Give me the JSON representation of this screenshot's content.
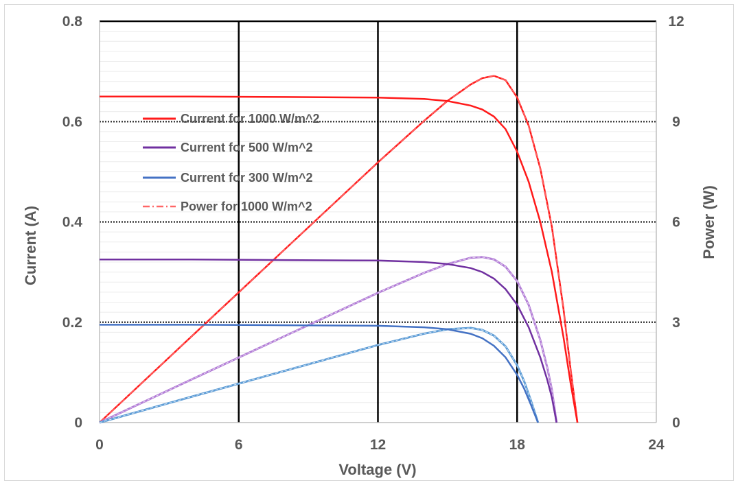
{
  "chart_data": {
    "type": "line",
    "xlabel": "Voltage (V)",
    "ylabel": "Current (A)",
    "y2label": "Power (W)",
    "xlim": [
      0,
      24
    ],
    "ylim": [
      0,
      0.8
    ],
    "y2lim": [
      0,
      12
    ],
    "xticks": [
      "0",
      "6",
      "12",
      "18",
      "24"
    ],
    "yticks": [
      "0",
      "0.2",
      "0.4",
      "0.6",
      "0.8"
    ],
    "y2ticks": [
      "0",
      "3",
      "6",
      "9",
      "12"
    ],
    "legend_position": "upper-left inside plot",
    "colors": {
      "current_1000": "#ff1a1a",
      "current_500": "#7030a0",
      "current_300": "#4472c4",
      "power_1000_legend": "#ff6666",
      "power_500": "#b27cd6",
      "power_300": "#5b9bd5",
      "vertical_grid": "#000000",
      "horizontal_grid": "#404040",
      "text": "#595959"
    },
    "series": [
      {
        "name": "Current for 1000 W/m^2",
        "axis": "left",
        "style": "solid",
        "x": [
          0,
          4,
          8,
          12,
          14,
          15,
          16,
          16.5,
          17,
          17.5,
          18,
          18.5,
          19,
          19.5,
          20,
          20.3,
          20.6
        ],
        "y": [
          0.65,
          0.65,
          0.649,
          0.648,
          0.645,
          0.641,
          0.632,
          0.624,
          0.61,
          0.585,
          0.54,
          0.48,
          0.4,
          0.3,
          0.17,
          0.08,
          0
        ]
      },
      {
        "name": "Current for 500 W/m^2",
        "axis": "left",
        "style": "solid",
        "x": [
          0,
          4,
          8,
          12,
          14,
          15,
          16,
          16.5,
          17,
          17.5,
          18,
          18.5,
          19,
          19.3,
          19.5,
          19.7
        ],
        "y": [
          0.325,
          0.325,
          0.324,
          0.323,
          0.32,
          0.316,
          0.308,
          0.3,
          0.287,
          0.266,
          0.235,
          0.19,
          0.13,
          0.085,
          0.05,
          0
        ]
      },
      {
        "name": "Current for 300 W/m^2",
        "axis": "left",
        "style": "solid",
        "x": [
          0,
          4,
          8,
          12,
          14,
          15,
          16,
          16.5,
          17,
          17.5,
          18,
          18.3,
          18.6,
          18.9
        ],
        "y": [
          0.195,
          0.195,
          0.194,
          0.193,
          0.19,
          0.186,
          0.177,
          0.168,
          0.153,
          0.13,
          0.095,
          0.068,
          0.035,
          0
        ]
      },
      {
        "name": "Power for 1000 W/m^2",
        "axis": "right",
        "style": "dashdot",
        "x": [
          0,
          4,
          8,
          12,
          14,
          15,
          16,
          16.5,
          17,
          17.5,
          18,
          18.5,
          19,
          19.5,
          20,
          20.3,
          20.6
        ],
        "y": [
          0,
          2.6,
          5.19,
          7.78,
          9.03,
          9.62,
          10.11,
          10.3,
          10.37,
          10.24,
          9.72,
          8.88,
          7.6,
          5.85,
          3.4,
          1.62,
          0
        ]
      },
      {
        "axis": "right",
        "style": "solid+dashed",
        "x": [
          0,
          4,
          8,
          12,
          14,
          15,
          16,
          16.5,
          17,
          17.5,
          18,
          18.5,
          19,
          19.3,
          19.5,
          19.7
        ],
        "y": [
          0,
          1.3,
          2.59,
          3.88,
          4.48,
          4.74,
          4.93,
          4.95,
          4.88,
          4.66,
          4.23,
          3.52,
          2.47,
          1.64,
          0.98,
          0
        ]
      },
      {
        "axis": "right",
        "style": "solid+dashed",
        "x": [
          0,
          4,
          8,
          12,
          14,
          15,
          16,
          16.5,
          17,
          17.5,
          18,
          18.3,
          18.6,
          18.9
        ],
        "y": [
          0,
          0.78,
          1.55,
          2.32,
          2.66,
          2.79,
          2.83,
          2.77,
          2.6,
          2.28,
          1.71,
          1.24,
          0.65,
          0
        ]
      }
    ]
  }
}
